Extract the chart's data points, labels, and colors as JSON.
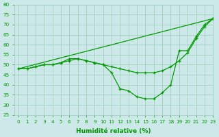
{
  "xlabel": "Humidité relative (%)",
  "bg_color": "#cce8e8",
  "grid_color": "#99ccbb",
  "line_color": "#009900",
  "marker": "+",
  "xlim": [
    -0.5,
    23
  ],
  "ylim": [
    25,
    80
  ],
  "yticks": [
    25,
    30,
    35,
    40,
    45,
    50,
    55,
    60,
    65,
    70,
    75,
    80
  ],
  "xticks": [
    0,
    1,
    2,
    3,
    4,
    5,
    6,
    7,
    8,
    9,
    10,
    11,
    12,
    13,
    14,
    15,
    16,
    17,
    18,
    19,
    20,
    21,
    22,
    23
  ],
  "line1_x": [
    0,
    1,
    2,
    3,
    4,
    5,
    6,
    7,
    8,
    9,
    10,
    11,
    12,
    13,
    14,
    15,
    16,
    17,
    18,
    19,
    20,
    21,
    22,
    23
  ],
  "line1_y": [
    48,
    48,
    49,
    50,
    50,
    51,
    53,
    53,
    52,
    51,
    50,
    46,
    38,
    37,
    34,
    33,
    33,
    36,
    40,
    57,
    57,
    64,
    70,
    73
  ],
  "line2_x": [
    0,
    1,
    2,
    3,
    4,
    5,
    6,
    7,
    8,
    9,
    10,
    11,
    12,
    13,
    14,
    15,
    16,
    17,
    18,
    19,
    20,
    21,
    22,
    23
  ],
  "line2_y": [
    48,
    48,
    49,
    50,
    50,
    51,
    52,
    53,
    52,
    51,
    50,
    49,
    48,
    47,
    46,
    46,
    46,
    47,
    49,
    52,
    56,
    63,
    69,
    73
  ],
  "line3_x": [
    0,
    23
  ],
  "line3_y": [
    48,
    73
  ],
  "xlabel_fontsize": 6.5,
  "tick_fontsize": 5.2
}
